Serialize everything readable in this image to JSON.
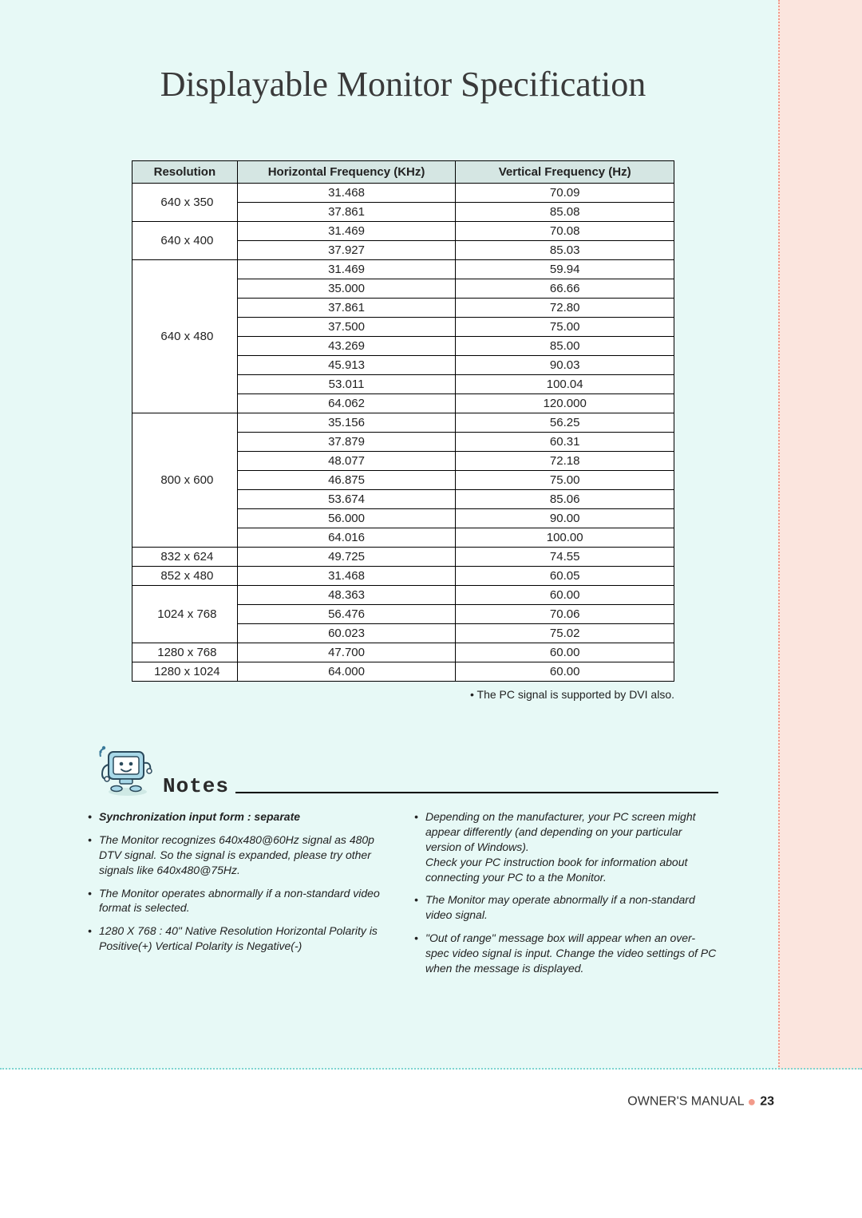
{
  "title": "Displayable Monitor Specification",
  "table": {
    "headers": [
      "Resolution",
      "Horizontal Frequency (KHz)",
      "Vertical Frequency (Hz)"
    ],
    "header_bg": "#d5e6e3",
    "border_color": "#000000",
    "cell_bg": "#ffffff",
    "col_widths": [
      "130px",
      "270px",
      "270px"
    ],
    "groups": [
      {
        "resolution": "640 x 350",
        "rows": [
          [
            "31.468",
            "70.09"
          ],
          [
            "37.861",
            "85.08"
          ]
        ]
      },
      {
        "resolution": "640 x 400",
        "rows": [
          [
            "31.469",
            "70.08"
          ],
          [
            "37.927",
            "85.03"
          ]
        ]
      },
      {
        "resolution": "640 x 480",
        "rows": [
          [
            "31.469",
            "59.94"
          ],
          [
            "35.000",
            "66.66"
          ],
          [
            "37.861",
            "72.80"
          ],
          [
            "37.500",
            "75.00"
          ],
          [
            "43.269",
            "85.00"
          ],
          [
            "45.913",
            "90.03"
          ],
          [
            "53.011",
            "100.04"
          ],
          [
            "64.062",
            "120.000"
          ]
        ]
      },
      {
        "resolution": "800 x 600",
        "rows": [
          [
            "35.156",
            "56.25"
          ],
          [
            "37.879",
            "60.31"
          ],
          [
            "48.077",
            "72.18"
          ],
          [
            "46.875",
            "75.00"
          ],
          [
            "53.674",
            "85.06"
          ],
          [
            "56.000",
            "90.00"
          ],
          [
            "64.016",
            "100.00"
          ]
        ]
      },
      {
        "resolution": "832 x 624",
        "rows": [
          [
            "49.725",
            "74.55"
          ]
        ]
      },
      {
        "resolution": "852 x 480",
        "rows": [
          [
            "31.468",
            "60.05"
          ]
        ]
      },
      {
        "resolution": "1024 x 768",
        "rows": [
          [
            "48.363",
            "60.00"
          ],
          [
            "56.476",
            "70.06"
          ],
          [
            "60.023",
            "75.02"
          ]
        ]
      },
      {
        "resolution": "1280 x 768",
        "rows": [
          [
            "47.700",
            "60.00"
          ]
        ]
      },
      {
        "resolution": "1280 x 1024",
        "rows": [
          [
            "64.000",
            "60.00"
          ]
        ]
      }
    ]
  },
  "table_note": "• The PC signal is supported by DVI also.",
  "notes_title": "Notes",
  "notes_left": [
    {
      "text": "Synchronization input form : separate",
      "bold": true
    },
    {
      "text": "The Monitor recognizes 640x480@60Hz signal as 480p DTV signal. So the signal is expanded, please try other signals like 640x480@75Hz."
    },
    {
      "text": "The Monitor operates abnormally if a non-standard video format is selected."
    },
    {
      "text": "1280 X 768 : 40\" Native Resolution Horizontal Polarity is Positive(+) Vertical Polarity is Negative(-)"
    }
  ],
  "notes_right": [
    {
      "text": "Depending on the manufacturer, your PC screen might appear differently (and depending on your particular version of Windows).\nCheck your PC instruction book for information about connecting your PC to a the Monitor."
    },
    {
      "text": "The Monitor may operate abnormally if a non-standard video signal."
    },
    {
      "text": "\"Out of range\" message box will appear when an over-spec video signal is input. Change the video settings of PC when the message is displayed."
    }
  ],
  "footer": {
    "label": "OWNER'S MANUAL",
    "page": "23"
  },
  "colors": {
    "page_bg": "#e7f9f6",
    "accent_bar": "#fbe5de",
    "accent_dot": "#f29a8a",
    "bottom_dot": "#7fd4d0"
  },
  "mascot": {
    "body_color": "#a8d8e8",
    "screen_color": "#ffffff",
    "outline_color": "#2b4a5c",
    "accent_color": "#3a7a9a"
  }
}
